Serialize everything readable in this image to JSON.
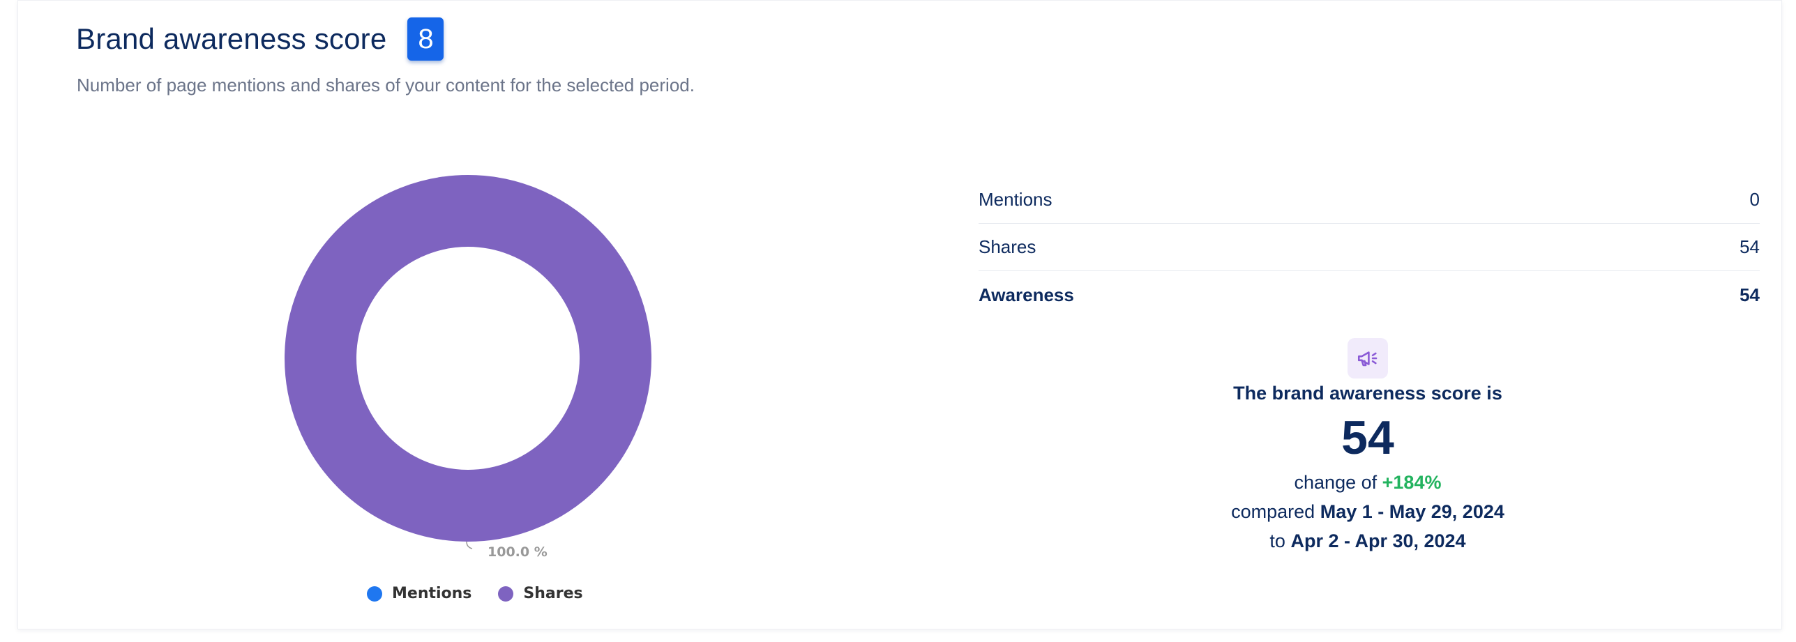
{
  "header": {
    "title": "Brand awareness score",
    "badge": "8",
    "subtitle": "Number of page mentions and shares of your content for the selected period."
  },
  "colors": {
    "mentions": "#1f77f0",
    "shares": "#7e63c0",
    "badge": "#1565e8",
    "positive": "#23b35f",
    "title": "#0d2a5e"
  },
  "chart_data": {
    "type": "pie",
    "donut": true,
    "series": [
      {
        "name": "Mentions",
        "value": 0
      },
      {
        "name": "Shares",
        "value": 54
      }
    ],
    "data_labels": [
      "100.0 %"
    ],
    "legend_position": "bottom"
  },
  "legend": [
    {
      "label": "Mentions",
      "color": "#1f77f0"
    },
    {
      "label": "Shares",
      "color": "#7e63c0"
    }
  ],
  "stats": {
    "rows": [
      {
        "label": "Mentions",
        "value": "0"
      },
      {
        "label": "Shares",
        "value": "54"
      }
    ],
    "total": {
      "label": "Awareness",
      "value": "54"
    }
  },
  "summary": {
    "icon": "megaphone-icon",
    "label": "The brand awareness score is",
    "score": "54",
    "change_prefix": "change of",
    "change_value": "+184%",
    "compared_prefix": "compared",
    "current_period": "May 1 - May 29, 2024",
    "to_prefix": "to",
    "previous_period": "Apr 2 - Apr 30, 2024"
  }
}
